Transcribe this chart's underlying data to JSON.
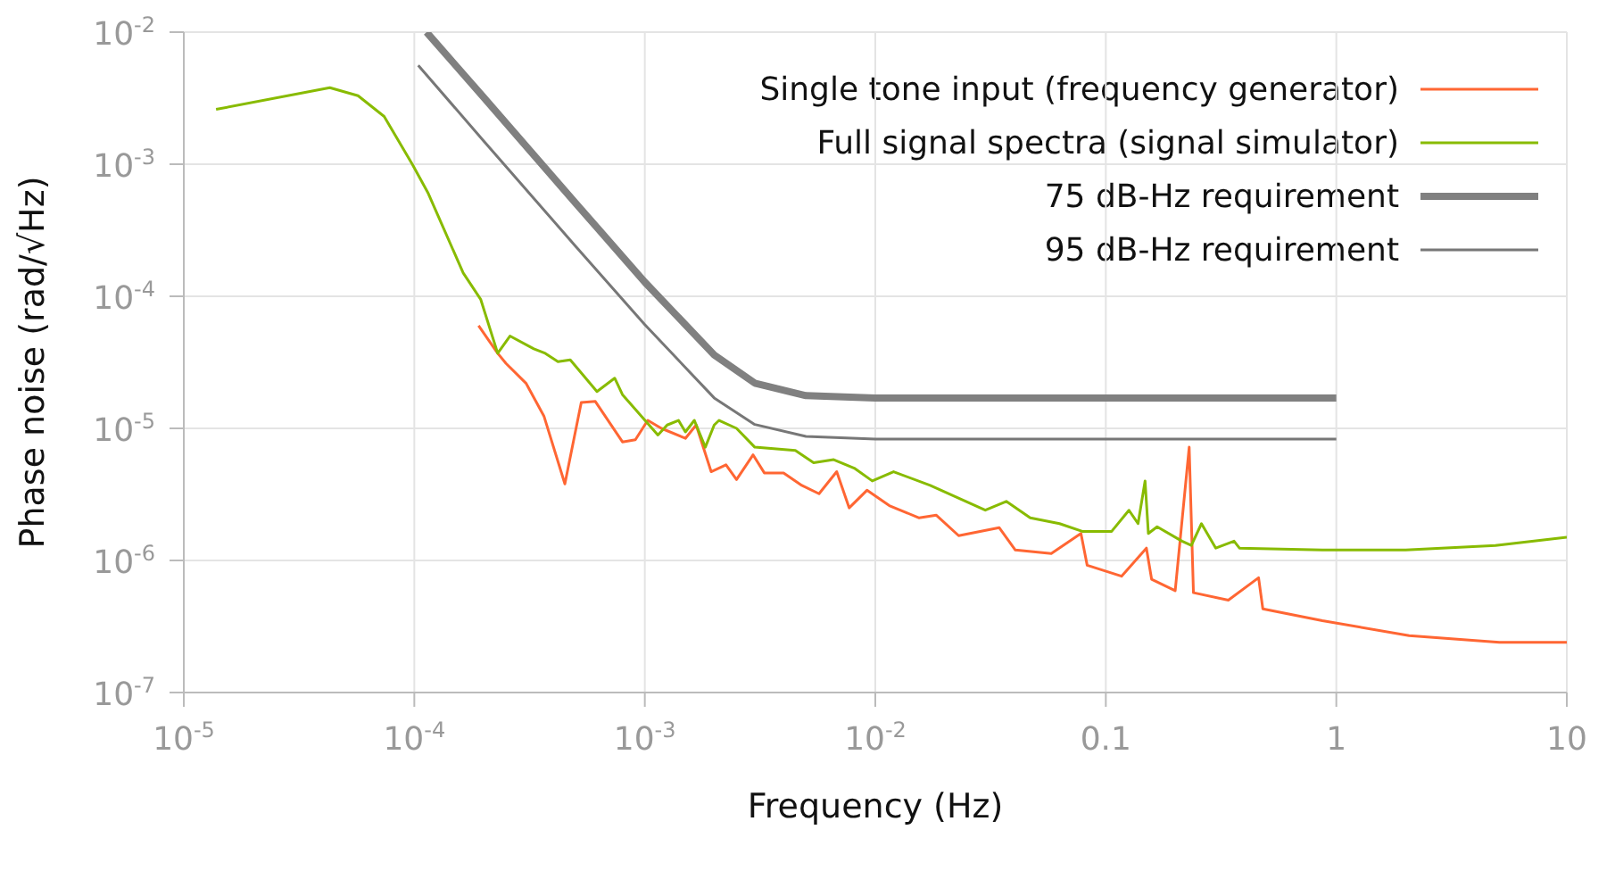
{
  "chart_data": {
    "type": "line",
    "xlabel": "Frequency (Hz)",
    "ylabel": "Phase noise (rad/√Hz)",
    "log": "xy",
    "grid": true,
    "legend": "top right",
    "line_style": "solid",
    "marker": "none",
    "xlim": [
      1e-05,
      10
    ],
    "ylim": [
      1e-07,
      0.01
    ],
    "xticks": [
      {
        "value": 1e-05,
        "label": "10$^{-5}$"
      },
      {
        "value": 0.0001,
        "label": "10$^{-4}$"
      },
      {
        "value": 0.001,
        "label": "10$^{-3}$"
      },
      {
        "value": 0.01,
        "label": "10$^{-2}$"
      },
      0.1,
      1,
      10
    ],
    "yticks": [
      {
        "value": 1e-07,
        "label": "10$^{-7}$"
      },
      {
        "value": 1e-06,
        "label": "10$^{-6}$"
      },
      {
        "value": 1e-05,
        "label": "10$^{-5}$"
      },
      {
        "value": 0.0001,
        "label": "10$^{-4}$"
      },
      {
        "value": 0.001,
        "label": "10$^{-3}$"
      },
      {
        "value": 0.01,
        "label": "10$^{-2}$"
      }
    ],
    "series": [
      {
        "name": "Single tone input (frequency generator)",
        "color": "#ff6633",
        "x": [
          0.00019,
          0.00023,
          0.00025,
          0.000305,
          0.000365,
          0.00045,
          0.00053,
          0.00061,
          0.0008,
          0.00091,
          0.00103,
          0.00118,
          0.0015,
          0.00167,
          0.00194,
          0.00225,
          0.0025,
          0.00295,
          0.0033,
          0.004,
          0.0048,
          0.0057,
          0.0068,
          0.0077,
          0.0092,
          0.0115,
          0.0155,
          0.0184,
          0.023,
          0.0345,
          0.0405,
          0.058,
          0.078,
          0.083,
          0.117,
          0.15,
          0.158,
          0.2,
          0.23,
          0.24,
          0.34,
          0.46,
          0.48,
          0.87,
          2.07,
          5.1,
          10
        ],
        "values": [
          6e-05,
          3.7e-05,
          3.1e-05,
          2.2e-05,
          1.24e-05,
          3.8e-06,
          1.57e-05,
          1.6e-05,
          7.9e-06,
          8.2e-06,
          1.15e-05,
          1e-05,
          8.4e-06,
          1.06e-05,
          4.7e-06,
          5.3e-06,
          4.1e-06,
          6.3e-06,
          4.6e-06,
          4.6e-06,
          3.7e-06,
          3.2e-06,
          4.7e-06,
          2.5e-06,
          3.4e-06,
          2.6e-06,
          2.1e-06,
          2.2e-06,
          1.54e-06,
          1.77e-06,
          1.2e-06,
          1.13e-06,
          1.6e-06,
          9.2e-07,
          7.6e-07,
          1.24e-06,
          7.2e-07,
          5.9e-07,
          7.2e-06,
          5.7e-07,
          5e-07,
          7.4e-07,
          4.3e-07,
          3.5e-07,
          2.7e-07,
          2.4e-07,
          2.4e-07
        ]
      },
      {
        "name": "Full signal spectra (signal simulator)",
        "color": "#88bb00",
        "x": [
          1.38e-05,
          4.3e-05,
          5.7e-05,
          7.4e-05,
          9.8e-05,
          0.000115,
          0.000163,
          0.000194,
          0.00023,
          0.00026,
          0.00033,
          0.00037,
          0.00042,
          0.000475,
          0.00062,
          0.00074,
          0.0008,
          0.00114,
          0.00125,
          0.0014,
          0.0015,
          0.00164,
          0.00183,
          0.002,
          0.0021,
          0.0025,
          0.003,
          0.0045,
          0.0054,
          0.0066,
          0.0081,
          0.0097,
          0.012,
          0.0173,
          0.03,
          0.037,
          0.047,
          0.063,
          0.079,
          0.106,
          0.126,
          0.138,
          0.148,
          0.153,
          0.167,
          0.214,
          0.235,
          0.26,
          0.3,
          0.36,
          0.38,
          0.87,
          2,
          4.9,
          10
        ],
        "values": [
          0.0026,
          0.0038,
          0.0033,
          0.0023,
          0.001,
          0.0006,
          0.00015,
          9.5e-05,
          3.7e-05,
          5e-05,
          4e-05,
          3.7e-05,
          3.2e-05,
          3.3e-05,
          1.9e-05,
          2.4e-05,
          1.8e-05,
          8.9e-06,
          1.06e-05,
          1.15e-05,
          9.4e-06,
          1.15e-05,
          7.2e-06,
          1.06e-05,
          1.15e-05,
          1e-05,
          7.2e-06,
          6.8e-06,
          5.5e-06,
          5.8e-06,
          5e-06,
          4e-06,
          4.7e-06,
          3.7e-06,
          2.4e-06,
          2.8e-06,
          2.1e-06,
          1.9e-06,
          1.66e-06,
          1.66e-06,
          2.4e-06,
          1.9e-06,
          4e-06,
          1.6e-06,
          1.8e-06,
          1.4e-06,
          1.3e-06,
          1.9e-06,
          1.24e-06,
          1.4e-06,
          1.24e-06,
          1.2e-06,
          1.2e-06,
          1.3e-06,
          1.5e-06
        ]
      },
      {
        "name": "75 dB-Hz requirement",
        "color": "#808080",
        "x": [
          0.000113,
          0.0002,
          0.0005,
          0.001,
          0.002,
          0.003,
          0.005,
          0.01,
          1
        ],
        "values": [
          0.01,
          0.0032,
          0.00051,
          0.000128,
          3.6e-05,
          2.2e-05,
          1.77e-05,
          1.7e-05,
          1.7e-05
        ]
      },
      {
        "name": "95 dB-Hz requirement",
        "color": "#777777",
        "x": [
          0.000104,
          0.0002,
          0.0005,
          0.001,
          0.002,
          0.003,
          0.005,
          0.01,
          1
        ],
        "values": [
          0.0056,
          0.0015,
          0.00024,
          6.1e-05,
          1.7e-05,
          1.07e-05,
          8.7e-06,
          8.3e-06,
          8.3e-06
        ]
      }
    ]
  }
}
